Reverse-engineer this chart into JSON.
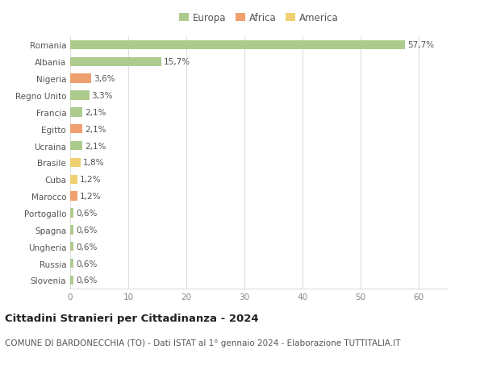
{
  "categories": [
    "Romania",
    "Albania",
    "Nigeria",
    "Regno Unito",
    "Francia",
    "Egitto",
    "Ucraina",
    "Brasile",
    "Cuba",
    "Marocco",
    "Portogallo",
    "Spagna",
    "Ungheria",
    "Russia",
    "Slovenia"
  ],
  "values": [
    57.7,
    15.7,
    3.6,
    3.3,
    2.1,
    2.1,
    2.1,
    1.8,
    1.2,
    1.2,
    0.6,
    0.6,
    0.6,
    0.6,
    0.6
  ],
  "labels": [
    "57,7%",
    "15,7%",
    "3,6%",
    "3,3%",
    "2,1%",
    "2,1%",
    "2,1%",
    "1,8%",
    "1,2%",
    "1,2%",
    "0,6%",
    "0,6%",
    "0,6%",
    "0,6%",
    "0,6%"
  ],
  "continents": [
    "Europa",
    "Europa",
    "Africa",
    "Europa",
    "Europa",
    "Africa",
    "Europa",
    "America",
    "America",
    "Africa",
    "Europa",
    "Europa",
    "Europa",
    "Europa",
    "Europa"
  ],
  "colors": {
    "Europa": "#aecb8e",
    "Africa": "#f0a070",
    "America": "#f0d070"
  },
  "legend_entries": [
    "Europa",
    "Africa",
    "America"
  ],
  "legend_colors": [
    "#aecb8e",
    "#f0a070",
    "#f0d070"
  ],
  "title": "Cittadini Stranieri per Cittadinanza - 2024",
  "subtitle": "COMUNE DI BARDONECCHIA (TO) - Dati ISTAT al 1° gennaio 2024 - Elaborazione TUTTITALIA.IT",
  "xlim": [
    0,
    65
  ],
  "xticks": [
    0,
    10,
    20,
    30,
    40,
    50,
    60
  ],
  "background_color": "#ffffff",
  "grid_color": "#dddddd",
  "bar_height": 0.55,
  "text_fontsize": 7.5,
  "label_fontsize": 7.5,
  "title_fontsize": 9.5,
  "subtitle_fontsize": 7.5,
  "legend_fontsize": 8.5
}
